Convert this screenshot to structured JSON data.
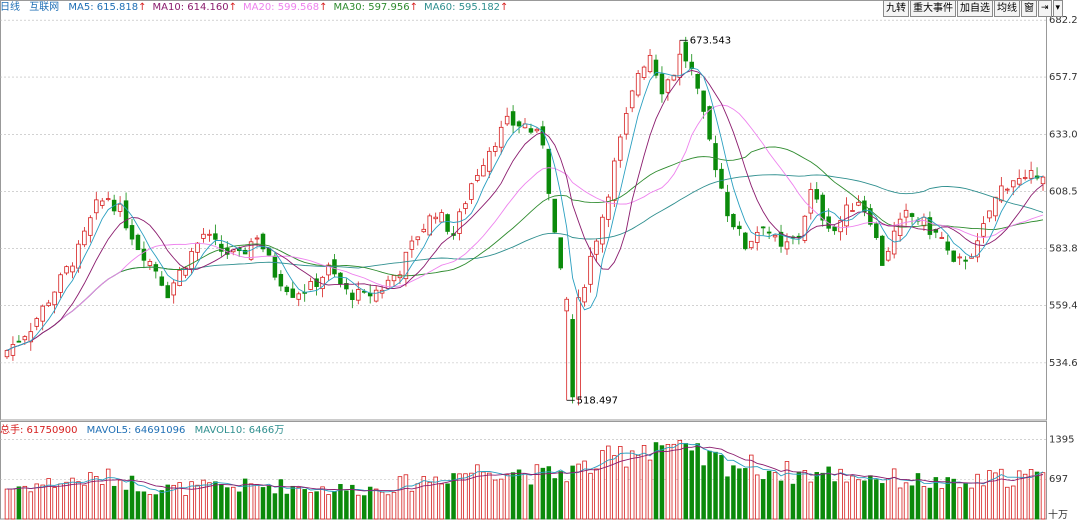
{
  "header": {
    "period": "日线",
    "symbol": "互联网",
    "ma": [
      {
        "label": "MA5: 615.818",
        "color": "#1f6fb5"
      },
      {
        "label": "MA10: 614.160",
        "color": "#8b1c6e"
      },
      {
        "label": "MA20: 599.568",
        "color": "#ee82ee"
      },
      {
        "label": "MA30: 597.956",
        "color": "#2e8b2e"
      },
      {
        "label": "MA60: 595.182",
        "color": "#2f8f8f"
      }
    ],
    "arrow": "↑"
  },
  "toolbar": {
    "buttons": [
      "九转",
      "重大事件",
      "加自选",
      "均线",
      "窗",
      "⇥",
      "▾"
    ]
  },
  "volume_header": {
    "total": "总手: 61750900",
    "mavol5": "MAVOL5: 64691096",
    "mavol10": "MAVOL10: 6466万"
  },
  "colors": {
    "up": "#d62020",
    "down": "#0b8a0b",
    "ma5": "#2a9fc0",
    "ma10": "#8b1c6e",
    "ma20": "#ee82ee",
    "ma30": "#2e8b2e",
    "ma60": "#2f8f8f",
    "grid": "#b8b8b8"
  },
  "chart_data": {
    "type": "candlestick",
    "price_axis": {
      "ticks": [
        "682.2",
        "657.7",
        "633.0",
        "608.5",
        "583.8",
        "559.4",
        "534.6"
      ],
      "range": [
        510,
        684
      ]
    },
    "volume_axis": {
      "ticks": [
        "1395",
        "697"
      ],
      "unit": "十万",
      "range": [
        0,
        1420
      ]
    },
    "annotations": [
      {
        "label": "673.543",
        "index": 113,
        "value": 673.543
      },
      {
        "label": "518.497",
        "index": 94,
        "value": 518.497
      }
    ],
    "anchors": [
      [
        0,
        540
      ],
      [
        4,
        550
      ],
      [
        8,
        566
      ],
      [
        12,
        583
      ],
      [
        15,
        602
      ],
      [
        17,
        606
      ],
      [
        19,
        600
      ],
      [
        22,
        585
      ],
      [
        25,
        575
      ],
      [
        27,
        565
      ],
      [
        30,
        578
      ],
      [
        33,
        590
      ],
      [
        36,
        583
      ],
      [
        39,
        580
      ],
      [
        42,
        590
      ],
      [
        45,
        573
      ],
      [
        48,
        565
      ],
      [
        51,
        567
      ],
      [
        54,
        575
      ],
      [
        57,
        565
      ],
      [
        60,
        563
      ],
      [
        63,
        567
      ],
      [
        66,
        575
      ],
      [
        69,
        590
      ],
      [
        72,
        600
      ],
      [
        75,
        590
      ],
      [
        78,
        612
      ],
      [
        81,
        627
      ],
      [
        84,
        638
      ],
      [
        87,
        637
      ],
      [
        90,
        630
      ],
      [
        92,
        590
      ],
      [
        94,
        555
      ],
      [
        95,
        520
      ],
      [
        96,
        560
      ],
      [
        98,
        580
      ],
      [
        100,
        598
      ],
      [
        102,
        620
      ],
      [
        104,
        640
      ],
      [
        106,
        660
      ],
      [
        108,
        668
      ],
      [
        110,
        653
      ],
      [
        112,
        660
      ],
      [
        113,
        671
      ],
      [
        115,
        660
      ],
      [
        117,
        640
      ],
      [
        119,
        620
      ],
      [
        121,
        600
      ],
      [
        124,
        585
      ],
      [
        127,
        595
      ],
      [
        130,
        583
      ],
      [
        133,
        590
      ],
      [
        135,
        608
      ],
      [
        137,
        598
      ],
      [
        139,
        592
      ],
      [
        141,
        600
      ],
      [
        143,
        605
      ],
      [
        145,
        597
      ],
      [
        147,
        578
      ],
      [
        149,
        590
      ],
      [
        151,
        598
      ],
      [
        153,
        597
      ],
      [
        155,
        592
      ],
      [
        157,
        588
      ],
      [
        159,
        576
      ],
      [
        161,
        580
      ],
      [
        163,
        585
      ],
      [
        165,
        600
      ],
      [
        167,
        610
      ],
      [
        169,
        614
      ],
      [
        171,
        612
      ],
      [
        173,
        617
      ]
    ],
    "volume_anchors": [
      [
        0,
        540
      ],
      [
        10,
        660
      ],
      [
        18,
        720
      ],
      [
        25,
        520
      ],
      [
        35,
        560
      ],
      [
        45,
        580
      ],
      [
        55,
        520
      ],
      [
        62,
        530
      ],
      [
        68,
        640
      ],
      [
        75,
        790
      ],
      [
        82,
        900
      ],
      [
        90,
        760
      ],
      [
        94,
        820
      ],
      [
        100,
        980
      ],
      [
        106,
        1280
      ],
      [
        110,
        1350
      ],
      [
        114,
        1100
      ],
      [
        120,
        1000
      ],
      [
        126,
        900
      ],
      [
        132,
        800
      ],
      [
        140,
        780
      ],
      [
        148,
        720
      ],
      [
        155,
        640
      ],
      [
        160,
        560
      ],
      [
        165,
        700
      ],
      [
        170,
        760
      ],
      [
        174,
        720
      ]
    ],
    "count": 175
  }
}
